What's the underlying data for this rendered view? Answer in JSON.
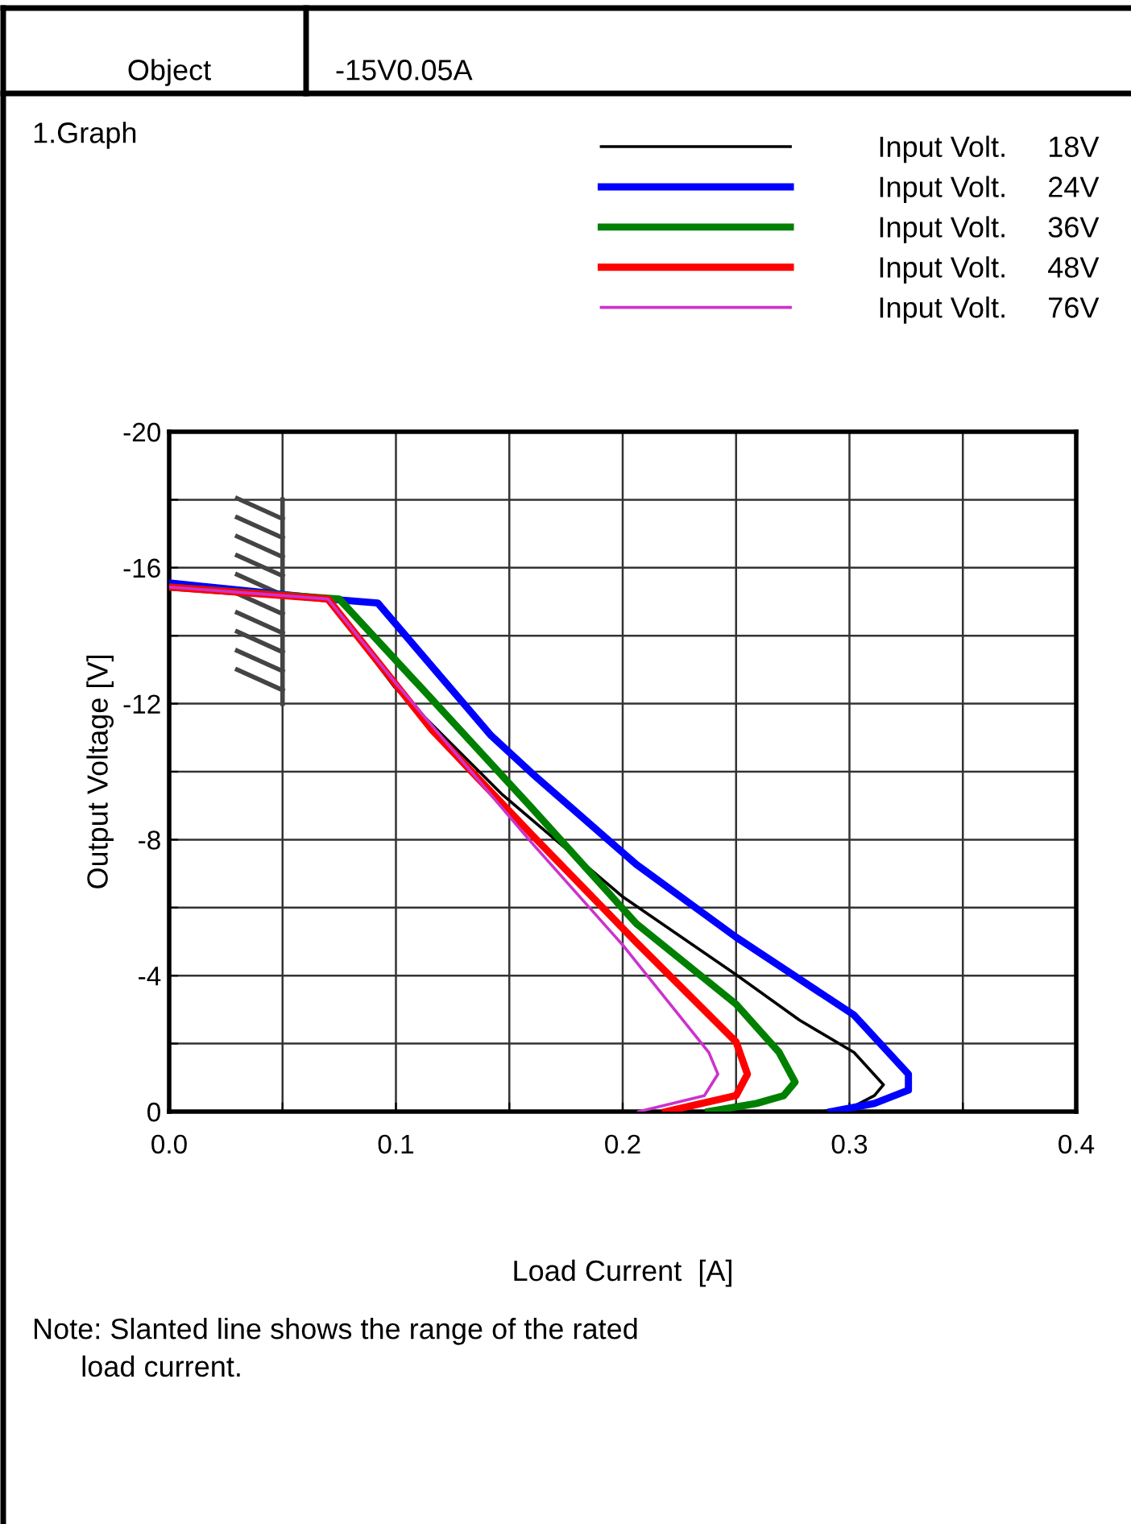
{
  "chart_data": {
    "type": "line",
    "title": "1.Graph",
    "xlabel": "Load Current  [A]",
    "ylabel": "Output Voltage [V]",
    "annotations": [
      "Object",
      "-15V0.05A",
      "Note: Slanted line shows the range of the rated\n      load current."
    ],
    "xlim": [
      0.0,
      0.4
    ],
    "ylim": [
      0,
      -20
    ],
    "xticks": [
      {
        "value": 0.0,
        "label": "0.0"
      },
      {
        "value": 0.05,
        "label": null
      },
      {
        "value": 0.1,
        "label": "0.1"
      },
      {
        "value": 0.15,
        "label": null
      },
      {
        "value": 0.2,
        "label": "0.2"
      },
      {
        "value": 0.25,
        "label": null
      },
      {
        "value": 0.3,
        "label": "0.3"
      },
      {
        "value": 0.35,
        "label": null
      },
      {
        "value": 0.4,
        "label": "0.4"
      }
    ],
    "yticks": [
      {
        "value": 0,
        "label": "0"
      },
      {
        "value": -2,
        "label": null
      },
      {
        "value": -4,
        "label": "-4"
      },
      {
        "value": -6,
        "label": null
      },
      {
        "value": -8,
        "label": "-8"
      },
      {
        "value": -10,
        "label": null
      },
      {
        "value": -12,
        "label": "-12"
      },
      {
        "value": -14,
        "label": null
      },
      {
        "value": -16,
        "label": "-16"
      },
      {
        "value": -18,
        "label": null
      },
      {
        "value": -20,
        "label": "-20"
      }
    ],
    "grid": true,
    "legend": "top right",
    "line_style": "solid",
    "marker": "none",
    "series": [
      {
        "name": "Input Volt.     18V",
        "color": "#000000",
        "x": [
          0.0,
          0.07,
          0.0995,
          0.147,
          0.2,
          0.25,
          0.278,
          0.302,
          0.315,
          0.311,
          0.302,
          0.288
        ],
        "values": [
          -15.43,
          -15.08,
          -12.48,
          -9.32,
          -6.32,
          -4.03,
          -2.69,
          -1.74,
          -0.79,
          -0.47,
          -0.16,
          0
        ]
      },
      {
        "name": "Input Volt.     24V",
        "color": "#0000ff",
        "x": [
          0.0,
          0.07,
          0.092,
          0.142,
          0.16,
          0.206,
          0.25,
          0.302,
          0.326,
          0.326,
          0.311,
          0.292
        ],
        "values": [
          -15.55,
          -15.08,
          -14.96,
          -11.06,
          -9.95,
          -7.27,
          -5.13,
          -2.84,
          -1.1,
          -0.63,
          -0.24,
          0
        ]
      },
      {
        "name": "Input Volt.     36V",
        "color": "#008000",
        "x": [
          0.0,
          0.075,
          0.111,
          0.159,
          0.206,
          0.25,
          0.269,
          0.276,
          0.271,
          0.259,
          0.238
        ],
        "values": [
          -15.43,
          -15.08,
          -12.48,
          -9.0,
          -5.53,
          -3.16,
          -1.74,
          -0.87,
          -0.47,
          -0.24,
          0
        ]
      },
      {
        "name": "Input Volt.     48V",
        "color": "#ff0000",
        "x": [
          0.0,
          0.07,
          0.116,
          0.16,
          0.206,
          0.25,
          0.255,
          0.25,
          0.219
        ],
        "values": [
          -15.43,
          -15.08,
          -11.22,
          -8.14,
          -4.98,
          -2.05,
          -1.1,
          -0.47,
          0
        ]
      },
      {
        "name": "Input Volt.     76V",
        "color": "#cc33cc",
        "x": [
          0.0,
          0.07,
          0.1,
          0.16,
          0.2,
          0.238,
          0.242,
          0.236,
          0.207
        ],
        "values": [
          -15.43,
          -15.08,
          -12.6,
          -7.9,
          -4.9,
          -1.74,
          -1.1,
          -0.47,
          0
        ]
      }
    ]
  }
}
